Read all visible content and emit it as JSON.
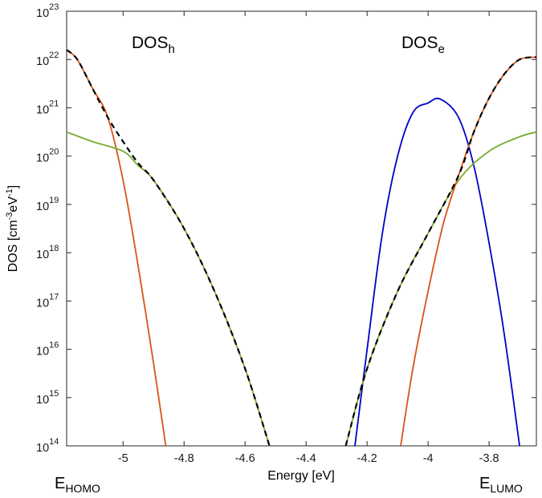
{
  "chart_data": {
    "type": "line",
    "title": "",
    "xlabel": "Energy [eV]",
    "ylabel": {
      "main": "DOS [cm",
      "exp1": "-3",
      "mid": "eV",
      "exp2": "-1",
      "close": "]"
    },
    "xlim": [
      -5.185,
      -3.645
    ],
    "ylim_log10": [
      14,
      23
    ],
    "yscale": "log",
    "grid": false,
    "x_ticks": [
      -5.0,
      -4.8,
      -4.6,
      -4.4,
      -4.2,
      -4.0,
      -3.8
    ],
    "x_tick_labels": [
      "-5",
      "-4.8",
      "-4.6",
      "-4.4",
      "-4.2",
      "-4",
      "-3.8"
    ],
    "y_ticks": [
      {
        "base": "10",
        "exp": "14",
        "log": 14
      },
      {
        "base": "10",
        "exp": "15",
        "log": 15
      },
      {
        "base": "10",
        "exp": "16",
        "log": 16
      },
      {
        "base": "10",
        "exp": "17",
        "log": 17
      },
      {
        "base": "10",
        "exp": "18",
        "log": 18
      },
      {
        "base": "10",
        "exp": "19",
        "log": 19
      },
      {
        "base": "10",
        "exp": "20",
        "log": 20
      },
      {
        "base": "10",
        "exp": "21",
        "log": 21
      },
      {
        "base": "10",
        "exp": "22",
        "log": 22
      },
      {
        "base": "10",
        "exp": "23",
        "log": 23
      }
    ],
    "annotations": [
      {
        "main": "DOS",
        "sub": "h",
        "near": "top-left"
      },
      {
        "main": "DOS",
        "sub": "e",
        "near": "top-right"
      }
    ],
    "edge_labels": [
      {
        "main": "E",
        "sub": "HOMO",
        "near": "bottom-left"
      },
      {
        "main": "E",
        "sub": "LUMO",
        "near": "bottom-right"
      }
    ],
    "series": [
      {
        "name": "orange-homo",
        "color": "#d95319",
        "style": "solid",
        "x": [
          -5.185,
          -5.15,
          -5.1,
          -5.05,
          -5.0,
          -4.95,
          -4.9,
          -4.86
        ],
        "log10_y": [
          22.2,
          22.0,
          21.4,
          20.8,
          19.5,
          17.7,
          15.7,
          14.0
        ]
      },
      {
        "name": "green-homo",
        "color": "#77ac30",
        "style": "solid",
        "x": [
          -5.185,
          -5.1,
          -5.0,
          -4.95,
          -4.9,
          -4.8,
          -4.7,
          -4.6,
          -4.52
        ],
        "log10_y": [
          20.5,
          20.3,
          20.1,
          19.8,
          19.5,
          18.5,
          17.2,
          15.6,
          14.0
        ]
      },
      {
        "name": "total-homo",
        "color": "#000000",
        "style": "dashed",
        "x": [
          -5.185,
          -5.15,
          -5.1,
          -5.05,
          -5.0,
          -4.95,
          -4.9,
          -4.8,
          -4.7,
          -4.6,
          -4.52
        ],
        "log10_y": [
          22.2,
          22.0,
          21.4,
          20.8,
          20.3,
          19.85,
          19.5,
          18.5,
          17.2,
          15.6,
          14.0
        ]
      },
      {
        "name": "blue-gaussian",
        "color": "#0000c8",
        "style": "solid",
        "x": [
          -4.24,
          -4.2,
          -4.15,
          -4.1,
          -4.05,
          -4.0,
          -3.96,
          -3.9,
          -3.85,
          -3.8,
          -3.75,
          -3.7
        ],
        "log10_y": [
          14.0,
          16.0,
          18.4,
          20.0,
          20.9,
          21.1,
          21.18,
          20.8,
          19.8,
          18.2,
          16.3,
          14.0
        ]
      },
      {
        "name": "green-lumo",
        "color": "#77ac30",
        "style": "solid",
        "x": [
          -4.27,
          -4.2,
          -4.1,
          -4.0,
          -3.9,
          -3.8,
          -3.7,
          -3.645
        ],
        "log10_y": [
          14.0,
          15.6,
          17.2,
          18.4,
          19.5,
          20.1,
          20.4,
          20.5
        ]
      },
      {
        "name": "orange-lumo",
        "color": "#d95319",
        "style": "solid",
        "x": [
          -4.09,
          -4.05,
          -4.0,
          -3.95,
          -3.9,
          -3.85,
          -3.8,
          -3.75,
          -3.7,
          -3.645
        ],
        "log10_y": [
          14.0,
          15.6,
          17.2,
          18.6,
          19.6,
          20.5,
          21.2,
          21.7,
          22.0,
          22.05
        ]
      },
      {
        "name": "total-lumo",
        "color": "#000000",
        "style": "dashed",
        "x": [
          -4.27,
          -4.2,
          -4.1,
          -4.0,
          -3.9,
          -3.85,
          -3.8,
          -3.75,
          -3.7,
          -3.645
        ],
        "log10_y": [
          14.0,
          15.6,
          17.2,
          18.4,
          19.6,
          20.5,
          21.2,
          21.7,
          22.0,
          22.05
        ]
      }
    ]
  }
}
